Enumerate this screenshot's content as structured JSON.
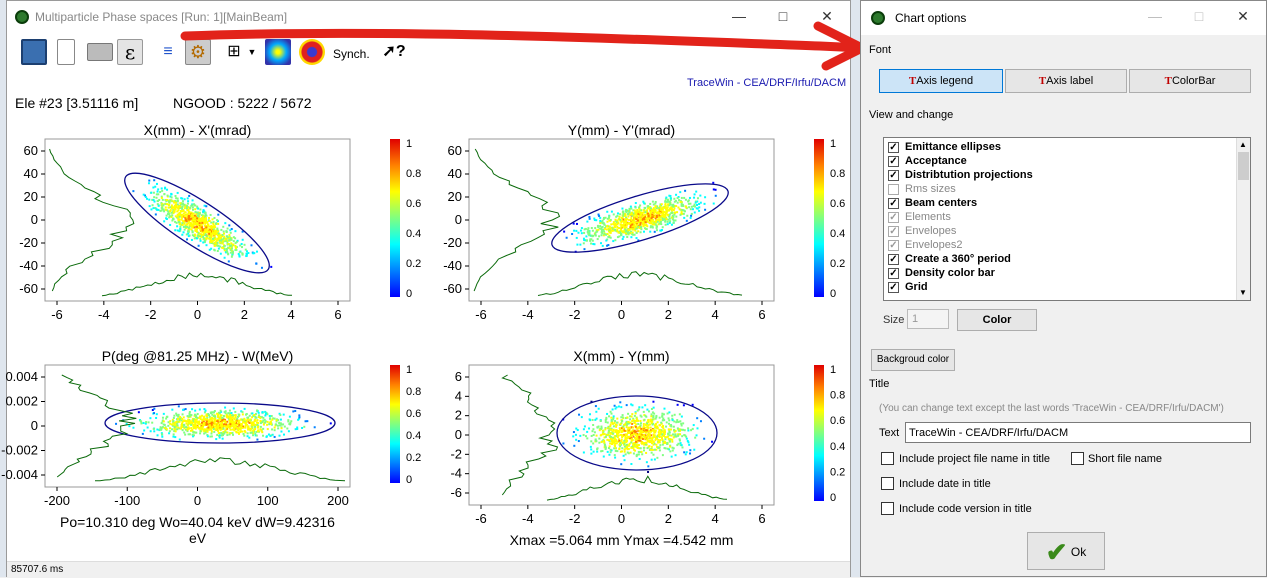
{
  "left_window": {
    "title": "Multiparticle Phase spaces [Run: 1][MainBeam]",
    "toolbar": {
      "synch_label": "Synch."
    },
    "credit": "TraceWin - CEA/DRF/Irfu/DACM",
    "element_info": "Ele #23 [3.51116 m]",
    "ngood": "NGOOD : 5222 / 5672",
    "status_time": "85707.6 ms"
  },
  "plots": [
    {
      "title": "X(mm) - X'(mrad)",
      "xticks": [
        "-6",
        "-4",
        "-2",
        "0",
        "2",
        "4",
        "6"
      ],
      "yticks": [
        "60",
        "40",
        "20",
        "0",
        "-20",
        "-40",
        "-60"
      ],
      "cticks": [
        "1",
        "0.8",
        "0.6",
        "0.4",
        "0.2",
        "0"
      ]
    },
    {
      "title": "Y(mm) - Y'(mrad)",
      "xticks": [
        "-6",
        "-4",
        "-2",
        "0",
        "2",
        "4",
        "6"
      ],
      "yticks": [
        "60",
        "40",
        "20",
        "0",
        "-20",
        "-40",
        "-60"
      ],
      "cticks": [
        "1",
        "0.8",
        "0.6",
        "0.4",
        "0.2",
        "0"
      ]
    },
    {
      "title": "P(deg @81.25 MHz) - W(MeV)",
      "xticks": [
        "-200",
        "-100",
        "0",
        "100",
        "200"
      ],
      "yticks": [
        "0.004",
        "0.002",
        "0",
        "-0.002",
        "-0.004"
      ],
      "cticks": [
        "1",
        "0.8",
        "0.6",
        "0.4",
        "0.2",
        "0"
      ],
      "footer1": "Po=10.310 deg  Wo=40.04 keV  dW=9.42316",
      "footer2": "eV"
    },
    {
      "title": "X(mm) - Y(mm)",
      "xticks": [
        "-6",
        "-4",
        "-2",
        "0",
        "2",
        "4",
        "6"
      ],
      "yticks": [
        "6",
        "4",
        "2",
        "0",
        "-2",
        "-4",
        "-6"
      ],
      "cticks": [
        "1",
        "0.8",
        "0.6",
        "0.4",
        "0.2",
        "0"
      ],
      "footer1": "Xmax =5.064 mm  Ymax =4.542 mm"
    }
  ],
  "dialog": {
    "title": "Chart options",
    "font_section": "Font",
    "font_buttons": [
      "Axis legend",
      "Axis label",
      "ColorBar"
    ],
    "view_section": "View and change",
    "items": [
      {
        "label": "Emittance ellipses",
        "checked": true,
        "enabled": true
      },
      {
        "label": "Acceptance",
        "checked": true,
        "enabled": true
      },
      {
        "label": "Distribtution projections",
        "checked": true,
        "enabled": true
      },
      {
        "label": "Rms sizes",
        "checked": false,
        "enabled": false
      },
      {
        "label": "Beam centers",
        "checked": true,
        "enabled": true
      },
      {
        "label": "Elements",
        "checked": true,
        "enabled": false
      },
      {
        "label": "Envelopes",
        "checked": true,
        "enabled": false
      },
      {
        "label": "Envelopes2",
        "checked": true,
        "enabled": false
      },
      {
        "label": "Create a 360° period",
        "checked": true,
        "enabled": true
      },
      {
        "label": "Density color bar",
        "checked": true,
        "enabled": true
      },
      {
        "label": "Grid",
        "checked": true,
        "enabled": true
      }
    ],
    "size_label": "Size",
    "size_value": "1",
    "color_button": "Color",
    "background_button": "Backgroud color",
    "title_section": "Title",
    "title_hint": "(You can change text except the last words 'TraceWin - CEA/DRF/Irfu/DACM')",
    "text_label": "Text",
    "text_value": "TraceWin - CEA/DRF/Irfu/DACM",
    "opt_project": "Include project file name in title",
    "opt_short": "Short file name",
    "opt_date": "Include date in title",
    "opt_code": "Include code version in title",
    "ok_label": "Ok"
  }
}
